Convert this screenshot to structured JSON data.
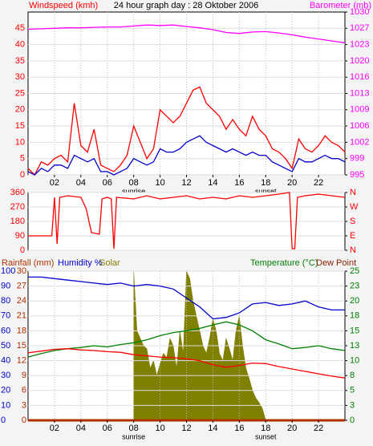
{
  "chart_data": [
    {
      "type": "line",
      "title": "24 hour graph day : 28 Oktober 2006",
      "xlim": [
        0,
        24
      ],
      "xticks": [
        {
          "value": 2,
          "label": "02"
        },
        {
          "value": 4,
          "label": "04"
        },
        {
          "value": 6,
          "label": "06"
        },
        {
          "value": 8,
          "label": "08"
        },
        {
          "value": 10,
          "label": "10"
        },
        {
          "value": 12,
          "label": "12"
        },
        {
          "value": 14,
          "label": "14"
        },
        {
          "value": 16,
          "label": "16"
        },
        {
          "value": 18,
          "label": "18"
        },
        {
          "value": 20,
          "label": "20"
        },
        {
          "value": 22,
          "label": "22"
        }
      ],
      "ylim": [
        0,
        50
      ],
      "yticks": [
        0,
        5,
        10,
        15,
        20,
        25,
        30,
        35,
        40,
        45
      ],
      "y2lim": [
        995,
        1030
      ],
      "y2ticks": [
        995,
        {
          "value": 998.5,
          "label": "999"
        },
        1002,
        {
          "value": 1005.5,
          "label": "1006"
        },
        1009,
        {
          "value": 1012.5,
          "label": "1013"
        },
        1016,
        {
          "value": 1019.5,
          "label": "1020"
        },
        1023,
        {
          "value": 1026.5,
          "label": "1027"
        },
        1030
      ],
      "grid": true,
      "annotations": [
        {
          "text": "sunrise",
          "x": 8
        },
        {
          "text": "sunset",
          "x": 18
        }
      ],
      "series": [
        {
          "name": "Windspeed (kmh)",
          "color": "#ff0000",
          "axis": "y",
          "x": [
            0,
            0.5,
            1,
            1.5,
            2,
            2.5,
            3,
            3.5,
            4,
            4.5,
            5,
            5.5,
            6,
            6.5,
            7,
            7.5,
            8,
            8.5,
            9,
            9.5,
            10,
            10.5,
            11,
            11.5,
            12,
            12.5,
            13,
            13.5,
            14,
            14.5,
            15,
            15.5,
            16,
            16.5,
            17,
            17.5,
            18,
            18.5,
            19,
            19.5,
            20,
            20.5,
            21,
            21.5,
            22,
            22.5,
            23,
            23.5,
            24
          ],
          "values": [
            2,
            0,
            4,
            3,
            5,
            6,
            4,
            22,
            9,
            7,
            14,
            3,
            2,
            1,
            3,
            6,
            15,
            10,
            5,
            8,
            20,
            18,
            16,
            18,
            22,
            26,
            27,
            22,
            20,
            18,
            14,
            17,
            14,
            12,
            18,
            14,
            12,
            8,
            7,
            5,
            2,
            11,
            8,
            7,
            9,
            12,
            10,
            9,
            7
          ]
        },
        {
          "color": "#0000cc",
          "axis": "y",
          "x": [
            0,
            0.5,
            1,
            1.5,
            2,
            2.5,
            3,
            3.5,
            4,
            4.5,
            5,
            5.5,
            6,
            6.5,
            7,
            7.5,
            8,
            8.5,
            9,
            9.5,
            10,
            10.5,
            11,
            11.5,
            12,
            12.5,
            13,
            13.5,
            14,
            14.5,
            15,
            15.5,
            16,
            16.5,
            17,
            17.5,
            18,
            18.5,
            19,
            19.5,
            20,
            20.5,
            21,
            21.5,
            22,
            22.5,
            23,
            23.5,
            24
          ],
          "values": [
            1,
            0,
            2,
            1,
            3,
            3,
            2,
            6,
            5,
            4,
            5,
            1,
            1,
            0,
            1,
            2,
            5,
            4,
            3,
            4,
            8,
            7,
            7,
            8,
            10,
            11,
            12,
            10,
            9,
            8,
            7,
            8,
            7,
            6,
            7,
            6,
            6,
            4,
            3,
            2,
            1,
            5,
            4,
            4,
            5,
            6,
            5,
            5,
            4
          ]
        },
        {
          "name": "Barometer (mb)",
          "color": "#ff00ff",
          "axis": "y2",
          "x": [
            0,
            1,
            2,
            3,
            4,
            5,
            6,
            7,
            8,
            9,
            10,
            11,
            12,
            13,
            14,
            15,
            16,
            17,
            18,
            19,
            20,
            21,
            22,
            23,
            24
          ],
          "values": [
            1026.3,
            1026.4,
            1026.5,
            1026.6,
            1026.6,
            1026.7,
            1026.8,
            1026.8,
            1027,
            1027.2,
            1027.1,
            1027.2,
            1026.9,
            1026.6,
            1026.2,
            1025.6,
            1025.4,
            1025.7,
            1025.8,
            1025.5,
            1025.1,
            1024.6,
            1024.2,
            1023.8,
            1023.4
          ]
        }
      ]
    },
    {
      "type": "line",
      "xlim": [
        0,
        24
      ],
      "ylim": [
        0,
        360
      ],
      "yticks": [
        0,
        90,
        180,
        270,
        360
      ],
      "y2lim": [
        0,
        360
      ],
      "y2ticks": [
        {
          "value": 360,
          "label": "N"
        },
        {
          "value": 270,
          "label": "W"
        },
        {
          "value": 180,
          "label": "S"
        },
        {
          "value": 90,
          "label": "E"
        },
        {
          "value": 0,
          "label": "N"
        }
      ],
      "grid": true,
      "series": [
        {
          "color": "#ff0000",
          "axis": "y",
          "x": [
            0,
            1.8,
            2,
            2.2,
            2.4,
            3,
            4,
            4.4,
            4.8,
            5.4,
            5.6,
            6,
            6.3,
            6.5,
            6.7,
            8,
            9,
            10,
            11,
            12,
            13,
            14,
            15,
            16,
            17,
            18,
            19,
            19.8,
            20,
            20.2,
            20.4,
            21,
            22,
            23,
            24
          ],
          "values": [
            90,
            90,
            330,
            40,
            330,
            340,
            330,
            260,
            110,
            100,
            320,
            330,
            320,
            10,
            330,
            320,
            340,
            320,
            330,
            340,
            320,
            330,
            320,
            340,
            330,
            340,
            350,
            360,
            10,
            10,
            330,
            340,
            350,
            340,
            330
          ]
        }
      ]
    },
    {
      "type": "line",
      "xlim": [
        0,
        24
      ],
      "xticks": [
        {
          "value": 2,
          "label": "02"
        },
        {
          "value": 4,
          "label": "04"
        },
        {
          "value": 6,
          "label": "06"
        },
        {
          "value": 8,
          "label": "08"
        },
        {
          "value": 10,
          "label": "10"
        },
        {
          "value": 12,
          "label": "12"
        },
        {
          "value": 14,
          "label": "14"
        },
        {
          "value": 16,
          "label": "16"
        },
        {
          "value": 18,
          "label": "18"
        },
        {
          "value": 20,
          "label": "20"
        },
        {
          "value": 22,
          "label": "22"
        }
      ],
      "ylim": [
        0,
        100
      ],
      "yticks": [
        0,
        10,
        20,
        30,
        40,
        50,
        60,
        70,
        80,
        90,
        100
      ],
      "y3lim": [
        0,
        30
      ],
      "y3ticks": [
        0,
        3,
        6,
        9,
        12,
        15,
        18,
        21,
        24,
        27,
        30
      ],
      "y2lim": [
        0,
        25
      ],
      "y2ticks": [
        0,
        {
          "value": 2.5,
          "label": "3"
        },
        5,
        {
          "value": 7.5,
          "label": "8"
        },
        10,
        {
          "value": 12.5,
          "label": "13"
        },
        15,
        {
          "value": 17.5,
          "label": "18"
        },
        20,
        {
          "value": 22.5,
          "label": "23"
        },
        25
      ],
      "grid": true,
      "annotations": [
        {
          "text": "sunrise",
          "x": 8
        },
        {
          "text": "sunset",
          "x": 18
        }
      ],
      "series": [
        {
          "name": "Humidity %",
          "color": "#0000cc",
          "axis": "y",
          "x": [
            0,
            1,
            2,
            3,
            4,
            5,
            6,
            7,
            8,
            9,
            10,
            11,
            12,
            13,
            14,
            15,
            16,
            17,
            18,
            19,
            20,
            21,
            22,
            23,
            24
          ],
          "values": [
            96,
            96,
            95,
            94,
            93,
            92,
            91,
            92,
            90,
            91,
            90,
            88,
            82,
            76,
            68,
            69,
            72,
            78,
            79,
            77,
            78,
            80,
            76,
            74,
            74
          ]
        },
        {
          "name": "Solar",
          "color": "#808000",
          "axis": "y",
          "type": "area",
          "x": [
            8,
            8.25,
            8.5,
            8.75,
            9,
            9.25,
            9.5,
            9.75,
            10,
            10.25,
            10.5,
            10.75,
            11,
            11.25,
            11.5,
            11.75,
            12,
            12.25,
            12.5,
            12.75,
            13,
            13.25,
            13.5,
            13.75,
            14,
            14.25,
            14.5,
            14.75,
            15,
            15.25,
            15.5,
            15.75,
            16,
            16.25,
            16.5,
            16.75,
            17,
            17.25,
            17.5,
            17.75,
            18
          ],
          "values": [
            100,
            60,
            55,
            50,
            48,
            35,
            40,
            30,
            38,
            45,
            42,
            55,
            50,
            35,
            60,
            45,
            100,
            95,
            80,
            70,
            60,
            50,
            45,
            55,
            68,
            60,
            45,
            40,
            55,
            48,
            40,
            60,
            70,
            50,
            35,
            28,
            20,
            15,
            12,
            8,
            0
          ]
        },
        {
          "name": "Rainfall (mm)",
          "color": "#b03000",
          "axis": "y3",
          "x": [
            0,
            1,
            2,
            3,
            4,
            5,
            6,
            7,
            8,
            9,
            10,
            11,
            12,
            13,
            14,
            15,
            16,
            17,
            18,
            19,
            20,
            21,
            22,
            23,
            24
          ],
          "values": [
            0,
            0,
            0,
            0,
            0,
            0,
            0,
            0,
            0,
            0,
            0,
            0,
            0,
            0,
            0,
            0,
            0,
            0,
            0,
            0,
            0,
            0,
            0,
            0,
            0
          ]
        },
        {
          "name": "Temperature (°C)",
          "color": "#008000",
          "axis": "y2",
          "x": [
            0,
            1,
            2,
            3,
            4,
            5,
            6,
            7,
            8,
            9,
            10,
            11,
            12,
            13,
            14,
            15,
            16,
            17,
            18,
            19,
            20,
            21,
            22,
            23,
            24
          ],
          "values": [
            10.6,
            11.2,
            11.7,
            12.0,
            12.2,
            12.5,
            12.3,
            12.7,
            13.0,
            13.5,
            14.2,
            14.7,
            15.0,
            15.4,
            16.0,
            16.5,
            16.0,
            15.0,
            13.5,
            12.8,
            12.0,
            12.2,
            12.5,
            12.0,
            11.7
          ]
        },
        {
          "name": "Dew Point",
          "color": "#ff0000",
          "axis": "y2",
          "x": [
            0,
            1,
            2,
            3,
            4,
            5,
            6,
            7,
            8,
            9,
            10,
            11,
            12,
            13,
            14,
            15,
            16,
            17,
            18,
            19,
            20,
            21,
            22,
            23,
            24
          ],
          "values": [
            11.3,
            11.6,
            11.9,
            12.0,
            11.8,
            11.7,
            11.5,
            11.4,
            11.0,
            10.8,
            10.6,
            10.5,
            10.3,
            10.0,
            9.3,
            8.9,
            9.2,
            9.6,
            9.5,
            9.0,
            8.6,
            8.2,
            7.8,
            7.4,
            7.1
          ]
        }
      ]
    }
  ]
}
